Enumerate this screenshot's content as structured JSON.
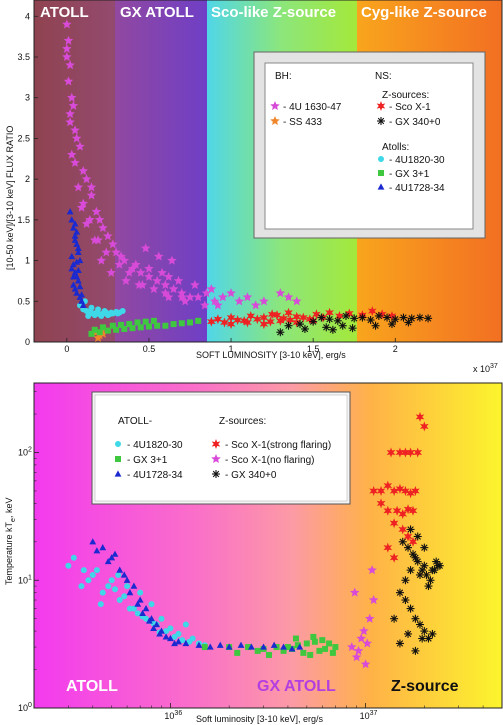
{
  "chart_data": [
    {
      "type": "scatter",
      "xlabel": "SOFT LUMINOSITY [3-10 keV], erg/s",
      "ylabel": "[10-50 keV]/[3-10 keV] FLUX RATIO",
      "x_multiplier": "x 10",
      "x_multiplier_exp": "37",
      "xlim": [
        -0.2,
        2.65
      ],
      "ylim": [
        0,
        4.2
      ],
      "xticks": [
        0,
        0.5,
        1,
        1.5,
        2
      ],
      "xtick_labels": [
        "0",
        "0.5",
        "1",
        "1.5",
        "2"
      ],
      "yticks": [
        0,
        0.5,
        1,
        1.5,
        2,
        2.5,
        3,
        3.5,
        4
      ],
      "ytick_labels": [
        "0",
        "0.5",
        "1",
        "1.5",
        "2",
        "2.5",
        "3",
        "3.5",
        "4"
      ],
      "bands": [
        {
          "label": "ATOLL",
          "x_range": [
            -0.2,
            0.25
          ],
          "color": "#a0404e"
        },
        {
          "label": "GX ATOLL",
          "x_range": [
            0.25,
            0.82
          ],
          "color": "#7a3fb0"
        },
        {
          "label": "Sco-like Z-source",
          "x_range": [
            0.82,
            1.65
          ],
          "color": "#7de28f"
        },
        {
          "label": "Cyg-like Z-source",
          "x_range": [
            1.65,
            2.65
          ],
          "color": "#fb8a1c"
        }
      ],
      "legend": {
        "placement": "upper right",
        "bh_title": "BH:",
        "ns_title": "NS:",
        "z_title": "Z-sources:",
        "atoll_title": "Atolls:",
        "items": {
          "bh1": "- 4U 1630-47",
          "bh2": "- SS 433",
          "z1": "- Sco X-1",
          "z2": "- GX 340+0",
          "a1": "- 4U1820-30",
          "a2": "- GX 3+1",
          "a3": "- 4U1728-34"
        }
      },
      "series": [
        {
          "name": "4U 1630-47",
          "marker": "star5",
          "color": "#d84bd8",
          "x": [
            0.0,
            0.01,
            0.0,
            0.02,
            0.01,
            0.03,
            0.02,
            0.04,
            0.0,
            0.05,
            0.06,
            0.08,
            0.1,
            0.12,
            0.15,
            0.18,
            0.2,
            0.25,
            0.3,
            0.35,
            0.4,
            0.45,
            0.5,
            0.55,
            0.6,
            0.65,
            0.7,
            0.75,
            0.8,
            0.85,
            0.9,
            0.95,
            1.0,
            1.1,
            1.2,
            1.3,
            1.35,
            1.4,
            0.15,
            0.22,
            0.28,
            0.33,
            0.42,
            0.5,
            0.58,
            0.62,
            0.68,
            0.78,
            0.88,
            0.05,
            0.1,
            0.14,
            0.19,
            0.24,
            0.32,
            0.38,
            0.46,
            0.53,
            0.62,
            0.72,
            0.02,
            0.03,
            0.07,
            0.09,
            0.12,
            0.17,
            0.21,
            0.27,
            0.36,
            0.44,
            0.6,
            0.7,
            0.84,
            0.92,
            1.05,
            1.15,
            0.48,
            0.56,
            0.64
          ],
          "y": [
            3.9,
            3.7,
            3.5,
            3.4,
            3.2,
            3.0,
            2.8,
            2.9,
            3.6,
            2.6,
            2.5,
            2.4,
            2.1,
            2.0,
            1.8,
            1.6,
            1.5,
            1.3,
            1.1,
            1.0,
            0.9,
            0.85,
            0.8,
            0.75,
            0.7,
            0.65,
            0.6,
            0.55,
            0.55,
            0.6,
            0.5,
            0.55,
            0.6,
            0.55,
            0.5,
            0.6,
            0.55,
            0.5,
            1.9,
            1.4,
            1.2,
            1.05,
            0.95,
            0.9,
            0.85,
            0.8,
            0.75,
            0.7,
            0.65,
            2.2,
            1.7,
            1.5,
            1.25,
            1.1,
            0.95,
            0.85,
            0.7,
            0.65,
            0.55,
            0.5,
            2.7,
            2.3,
            1.9,
            1.65,
            1.45,
            1.25,
            1.0,
            0.85,
            0.75,
            0.7,
            0.6,
            0.55,
            0.45,
            0.45,
            0.5,
            0.45,
            1.15,
            1.05,
            1.0
          ]
        },
        {
          "name": "SS 433",
          "marker": "star5",
          "color": "#f0862a",
          "x": [
            0.18,
            0.2,
            0.22,
            0.19,
            0.21
          ],
          "y": [
            0.12,
            0.08,
            0.1,
            0.05,
            0.13
          ]
        },
        {
          "name": "Sco X-1",
          "marker": "star6",
          "color": "#ee2222",
          "x": [
            0.88,
            0.92,
            0.96,
            1.0,
            1.04,
            1.08,
            1.12,
            1.16,
            1.2,
            1.24,
            1.28,
            1.32,
            1.36,
            1.4,
            1.44,
            1.48,
            1.52,
            1.56,
            1.6,
            1.66,
            1.72,
            1.8,
            1.86,
            1.92,
            1.98,
            1.0,
            1.1,
            1.2,
            1.3,
            1.4,
            1.5,
            1.25,
            1.35
          ],
          "y": [
            0.25,
            0.28,
            0.24,
            0.3,
            0.27,
            0.26,
            0.32,
            0.28,
            0.3,
            0.25,
            0.33,
            0.29,
            0.27,
            0.31,
            0.3,
            0.28,
            0.34,
            0.3,
            0.36,
            0.32,
            0.35,
            0.33,
            0.38,
            0.34,
            0.32,
            0.22,
            0.24,
            0.22,
            0.26,
            0.24,
            0.26,
            0.34,
            0.36
          ]
        },
        {
          "name": "GX 340+0",
          "marker": "asterisk",
          "color": "#111111",
          "x": [
            1.35,
            1.42,
            1.5,
            1.55,
            1.6,
            1.65,
            1.7,
            1.75,
            1.8,
            1.85,
            1.9,
            1.95,
            2.0,
            2.05,
            2.1,
            2.15,
            2.2,
            1.58,
            1.62,
            1.68,
            1.74,
            1.88,
            1.98,
            2.08,
            1.3,
            1.45
          ],
          "y": [
            0.2,
            0.22,
            0.25,
            0.3,
            0.28,
            0.26,
            0.32,
            0.29,
            0.3,
            0.27,
            0.32,
            0.3,
            0.28,
            0.3,
            0.29,
            0.3,
            0.29,
            0.18,
            0.15,
            0.2,
            0.17,
            0.2,
            0.22,
            0.24,
            0.12,
            0.16
          ]
        },
        {
          "name": "4U1820-30",
          "marker": "circle",
          "color": "#3ed8e8",
          "x": [
            0.08,
            0.1,
            0.12,
            0.14,
            0.16,
            0.18,
            0.2,
            0.22,
            0.24,
            0.26,
            0.28,
            0.3,
            0.32,
            0.34,
            0.11,
            0.15,
            0.19,
            0.23,
            0.27,
            0.31,
            0.13,
            0.17,
            0.21,
            0.25
          ],
          "y": [
            0.45,
            0.4,
            0.38,
            0.37,
            0.35,
            0.36,
            0.34,
            0.35,
            0.36,
            0.34,
            0.35,
            0.37,
            0.36,
            0.38,
            0.5,
            0.42,
            0.4,
            0.38,
            0.36,
            0.35,
            0.32,
            0.33,
            0.32,
            0.33
          ]
        },
        {
          "name": "GX 3+1",
          "marker": "square",
          "color": "#3fc83f",
          "x": [
            0.15,
            0.2,
            0.25,
            0.3,
            0.35,
            0.4,
            0.45,
            0.5,
            0.55,
            0.6,
            0.65,
            0.7,
            0.75,
            0.8,
            0.17,
            0.22,
            0.28,
            0.33,
            0.38,
            0.43,
            0.48,
            0.53
          ],
          "y": [
            0.1,
            0.12,
            0.14,
            0.15,
            0.16,
            0.17,
            0.18,
            0.19,
            0.2,
            0.2,
            0.22,
            0.23,
            0.24,
            0.26,
            0.15,
            0.18,
            0.2,
            0.21,
            0.22,
            0.24,
            0.25,
            0.26
          ]
        },
        {
          "name": "4U1728-34",
          "marker": "triangle",
          "color": "#1a2ad0",
          "x": [
            0.02,
            0.03,
            0.04,
            0.05,
            0.06,
            0.07,
            0.08,
            0.03,
            0.04,
            0.05,
            0.06,
            0.07,
            0.04,
            0.05,
            0.06,
            0.08,
            0.09,
            0.1,
            0.05,
            0.06,
            0.07,
            0.03,
            0.04,
            0.05,
            0.06,
            0.07,
            0.08,
            0.09
          ],
          "y": [
            1.6,
            1.5,
            1.4,
            1.3,
            1.2,
            1.1,
            1.0,
            0.9,
            0.95,
            0.85,
            0.8,
            0.75,
            0.7,
            0.65,
            0.6,
            0.55,
            0.5,
            0.45,
            1.45,
            1.35,
            1.15,
            1.05,
            0.8,
            1.25,
            0.98,
            0.88,
            0.68,
            0.58
          ]
        }
      ]
    },
    {
      "type": "scatter",
      "xlabel": "Soft luminosity [3-10 keV], erg/s",
      "ylabel_main": "Temperature kT",
      "ylabel_sub": "e",
      "ylabel_unit": ", keV",
      "x_scale": "log",
      "y_scale": "log",
      "xlim": [
        2e+35,
        5e+37
      ],
      "ylim": [
        1,
        350
      ],
      "xticks": [
        1e+36,
        1e+37
      ],
      "xtick_base": [
        "10",
        "10"
      ],
      "xtick_exp": [
        "36",
        "37"
      ],
      "yticks": [
        1,
        10,
        100
      ],
      "ytick_base": [
        "10",
        "10",
        "10"
      ],
      "ytick_exp": [
        "0",
        "1",
        "2"
      ],
      "bands": [
        {
          "label": "ATOLL",
          "color": "#ff4fd0"
        },
        {
          "label": "GX ATOLL",
          "color": "#c04ed8"
        },
        {
          "label": "Z-source",
          "color": "#111111"
        }
      ],
      "gradient_colors": [
        "#f33aef",
        "#fc9aa6",
        "#ffb247",
        "#fcf52d"
      ],
      "legend": {
        "placement": "upper left",
        "atoll_title": "ATOLL-",
        "z_title": "Z-sources:",
        "items": {
          "a1": "- 4U1820-30",
          "a2": "- GX 3+1",
          "a3": "- 4U1728-34",
          "z1": "- Sco X-1(strong flaring)",
          "z2": "- Sco X-1(no flaring)",
          "z3": "- GX 340+0"
        }
      },
      "series": [
        {
          "name": "4U1820-30",
          "marker": "circle",
          "color": "#3ed8e8",
          "x": [
            3e+35,
            3.5e+35,
            4e+35,
            4.5e+35,
            5e+35,
            5.5e+35,
            6e+35,
            6.5e+35,
            7e+35,
            7.5e+35,
            8e+35,
            8.5e+35,
            9e+35,
            9.5e+35,
            1e+36,
            1.1e+36,
            1.2e+36,
            1.3e+36,
            1.4e+36,
            1.5e+36,
            3.2e+35,
            3.8e+35,
            4.2e+35,
            4.8e+35,
            5.2e+35,
            5.8e+35,
            6.2e+35,
            6.8e+35,
            7.2e+35,
            7.8e+35,
            8.2e+35,
            8.8e+35,
            1.05e+36,
            1.15e+36,
            1.25e+36,
            3.6e+35,
            4.4e+35,
            5.4e+35
          ],
          "y": [
            13,
            9,
            11,
            8,
            10,
            7,
            9,
            6,
            8,
            5,
            6.5,
            4.5,
            5,
            4,
            4.2,
            3.8,
            4.5,
            3.5,
            3.2,
            3.1,
            15,
            10,
            12,
            9,
            8.5,
            7.5,
            6,
            5.5,
            5.2,
            4.8,
            4.6,
            3.9,
            3.6,
            3.4,
            3.3,
            12,
            6.5,
            11
          ]
        },
        {
          "name": "GX 3+1",
          "marker": "square",
          "color": "#3fc83f",
          "x": [
            1.5e+36,
            2e+36,
            2.5e+36,
            3e+36,
            3.5e+36,
            4e+36,
            4.5e+36,
            5e+36,
            5.5e+36,
            6e+36,
            6.5e+36,
            7e+36,
            2.2e+36,
            2.8e+36,
            3.2e+36,
            3.8e+36,
            4.2e+36,
            4.8e+36,
            5.2e+36,
            5.8e+36,
            6.2e+36,
            6.8e+36,
            4.4e+36,
            5.4e+36
          ],
          "y": [
            3.0,
            3.0,
            3.0,
            2.9,
            3.0,
            3.0,
            3.1,
            3.2,
            3.3,
            3.4,
            3.2,
            3.0,
            2.7,
            2.8,
            2.6,
            2.8,
            2.9,
            2.7,
            2.6,
            2.8,
            2.9,
            2.7,
            3.5,
            3.6
          ]
        },
        {
          "name": "4U1728-34",
          "marker": "triangle",
          "color": "#1a2ad0",
          "x": [
            4e+35,
            4.5e+35,
            5e+35,
            5.5e+35,
            6e+35,
            6.5e+35,
            7e+35,
            7.5e+35,
            8e+35,
            8.5e+35,
            9e+35,
            1e+36,
            1.1e+36,
            1.2e+36,
            1.4e+36,
            1.6e+36,
            1.8e+36,
            2e+36,
            2.3e+36,
            2.6e+36,
            3e+36,
            3.4e+36,
            3.8e+36,
            4.2e+36,
            4.6e+36,
            4.2e+35,
            4.8e+35,
            5.2e+35,
            5.8e+35,
            6.2e+35,
            6.8e+35,
            7.2e+35,
            7.8e+35,
            8.2e+35,
            8.8e+35,
            9.5e+35,
            1.05e+36
          ],
          "y": [
            20,
            18,
            15,
            12,
            10,
            9,
            7,
            6,
            5,
            4.5,
            4,
            3.5,
            3.3,
            3.2,
            3.1,
            3.0,
            3.1,
            3.0,
            3.1,
            3.0,
            3.0,
            3.1,
            3.0,
            2.9,
            3.0,
            17,
            14,
            16,
            11,
            8,
            6.5,
            5.5,
            4.8,
            4.2,
            3.8,
            3.6,
            3.2
          ]
        },
        {
          "name": "Sco X-1(strong flaring)",
          "marker": "star6",
          "color": "#ee2222",
          "x": [
            1.1e+37,
            1.2e+37,
            1.3e+37,
            1.4e+37,
            1.5e+37,
            1.6e+37,
            1.7e+37,
            1.8e+37,
            1.3e+37,
            1.45e+37,
            1.55e+37,
            1.65e+37,
            1.75e+37,
            1.35e+37,
            1.5e+37,
            1.6e+37,
            1.7e+37,
            1.85e+37,
            1.9e+37,
            2e+37,
            1.4e+37,
            1.55e+37,
            1.65e+37,
            1.75e+37,
            1.3e+37,
            1.4e+37,
            1.2e+37
          ],
          "y": [
            50,
            50,
            55,
            50,
            52,
            50,
            48,
            50,
            35,
            35,
            33,
            36,
            35,
            100,
            100,
            100,
            100,
            100,
            190,
            160,
            28,
            25,
            22,
            20,
            18,
            15,
            40
          ]
        },
        {
          "name": "Sco X-1(no flaring)",
          "marker": "star5",
          "color": "#d84bd8",
          "x": [
            8.5e+36,
            9e+36,
            9.5e+36,
            1e+37,
            1.05e+37,
            1.1e+37,
            8.8e+36,
            9.2e+36,
            9.8e+36,
            1.02e+37,
            1.08e+37
          ],
          "y": [
            3,
            2.5,
            3.5,
            2.2,
            5,
            7,
            8,
            2.8,
            4,
            3.2,
            12
          ]
        },
        {
          "name": "GX 340+0",
          "marker": "asterisk",
          "color": "#111111",
          "x": [
            1.4e+37,
            1.5e+37,
            1.6e+37,
            1.7e+37,
            1.8e+37,
            1.9e+37,
            2e+37,
            2.1e+37,
            2.2e+37,
            2.3e+37,
            2.4e+37,
            1.55e+37,
            1.65e+37,
            1.75e+37,
            1.85e+37,
            1.95e+37,
            2.05e+37,
            2.15e+37,
            2.25e+37,
            2.35e+37,
            1.6e+37,
            1.7e+37,
            1.8e+37,
            1.9e+37,
            2e+37,
            2.1e+37,
            2.2e+37,
            1.5e+37,
            1.65e+37,
            1.8e+37,
            1.95e+37,
            1.7e+37,
            1.85e+37,
            2e+37
          ],
          "y": [
            5,
            8,
            10,
            12,
            15,
            11,
            13,
            9,
            12,
            14,
            13,
            20,
            18,
            16,
            14,
            12,
            11,
            10,
            12,
            13,
            7,
            6,
            5,
            4.5,
            4,
            3.5,
            3.8,
            3.2,
            3.8,
            2.8,
            3.5,
            25,
            22,
            18
          ]
        }
      ]
    }
  ]
}
